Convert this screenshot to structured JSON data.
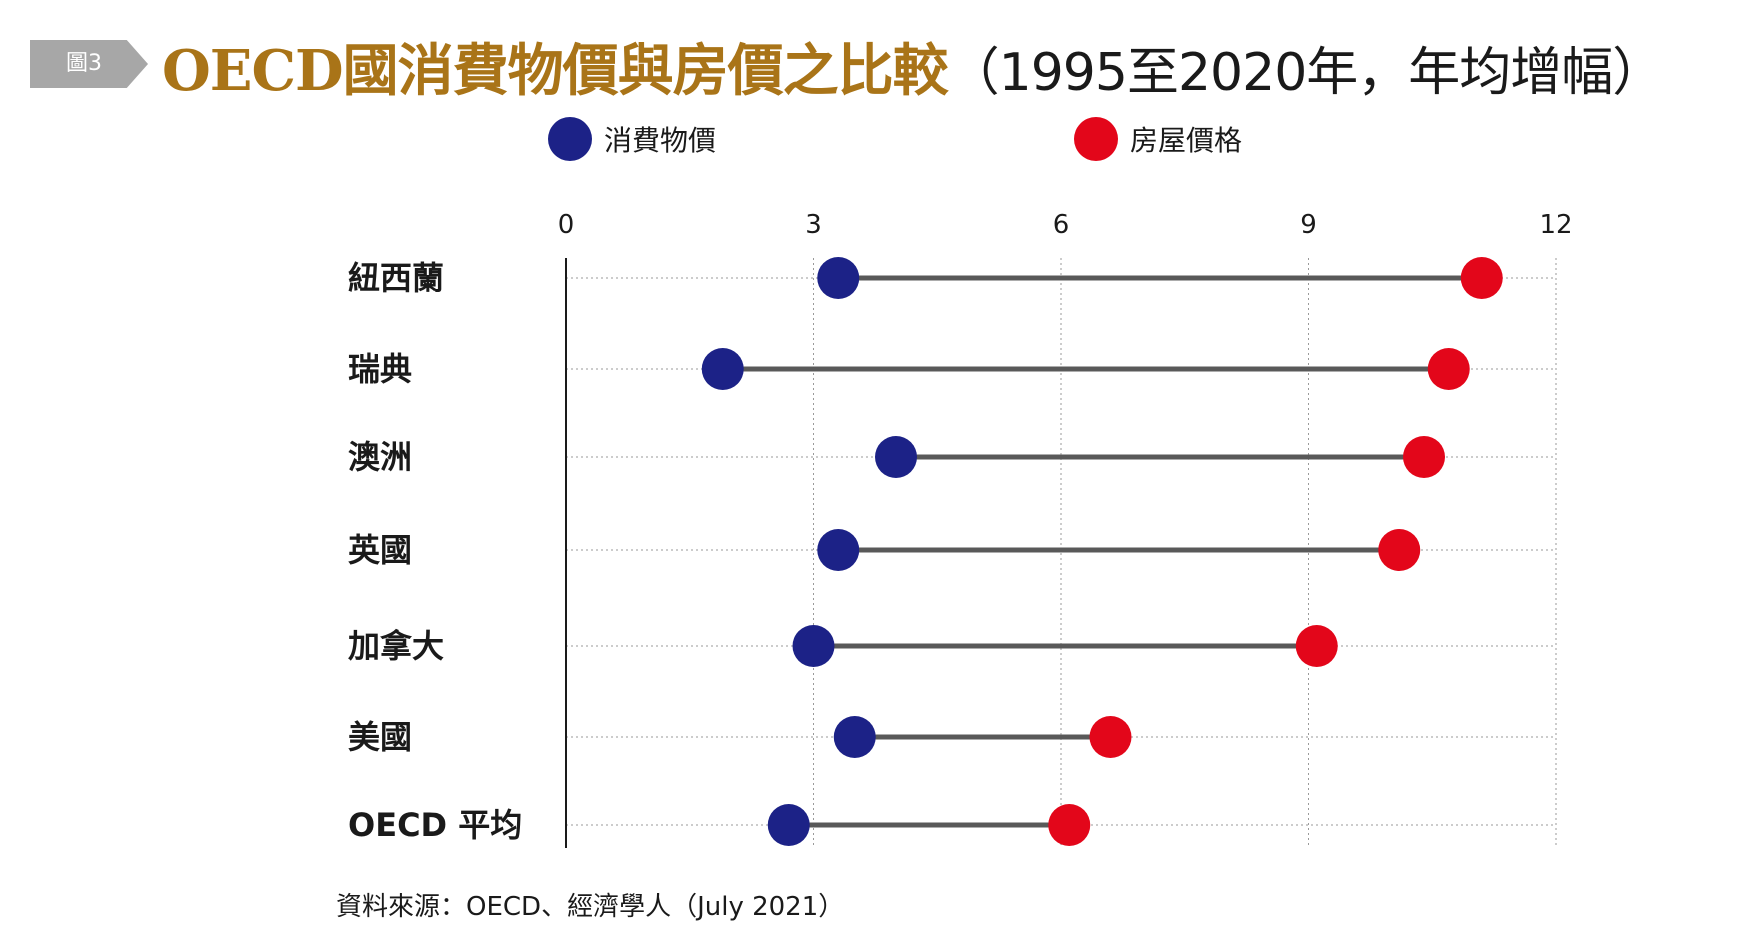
{
  "figure_tag": "圖3",
  "title": {
    "main": "OECD國消費物價與房價之比較",
    "sub": "（1995至2020年，年均增幅）"
  },
  "colors": {
    "consumer_price": "#1c2287",
    "house_price": "#e3061a",
    "connector": "#595959",
    "title": "#a97418",
    "tag_bg": "#a7a7a7",
    "grid": "#9a9a9a"
  },
  "legend": [
    {
      "key": "consumer_price",
      "label": "消費物價"
    },
    {
      "key": "house_price",
      "label": "房屋價格"
    }
  ],
  "chart_data": {
    "type": "dumbbell",
    "x_ticks": [
      0,
      3,
      6,
      9,
      12
    ],
    "xlim": [
      0,
      12
    ],
    "grid": true,
    "legend_position": "top",
    "categories": [
      "紐西蘭",
      "瑞典",
      "澳洲",
      "英國",
      "加拿大",
      "美國",
      "OECD 平均"
    ],
    "series": [
      {
        "name": "消費物價",
        "values": [
          3.3,
          1.9,
          4.0,
          3.3,
          3.0,
          3.5,
          2.7
        ]
      },
      {
        "name": "房屋價格",
        "values": [
          11.1,
          10.7,
          10.4,
          10.1,
          9.1,
          6.6,
          6.1
        ]
      }
    ]
  },
  "source": "資料來源：OECD、經濟學人（July 2021）"
}
